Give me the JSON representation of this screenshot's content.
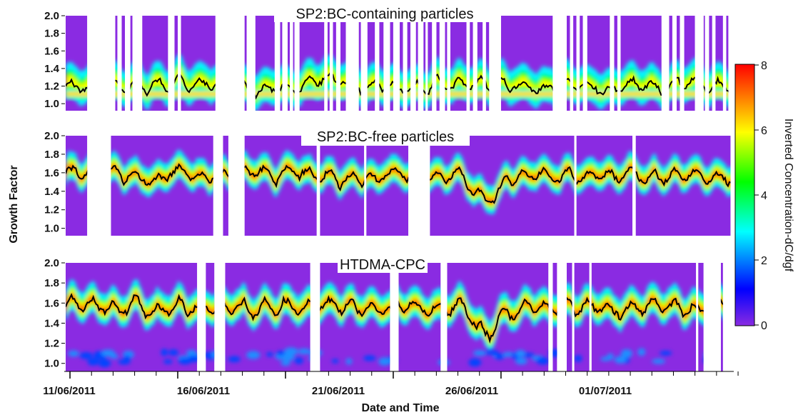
{
  "chart_data": {
    "type": "heatmap",
    "xlabel": "Date and Time",
    "ylabel": "Growth Factor",
    "x_ticks": [
      "11/06/2011",
      "16/06/2011",
      "21/06/2011",
      "26/06/2011",
      "01/07/2011"
    ],
    "ylim": [
      0.92,
      2.0
    ],
    "y_ticks": [
      "1.0",
      "1.2",
      "1.4",
      "1.6",
      "1.8",
      "2.0"
    ],
    "colorbar": {
      "label": "Inverted Concentration-dC/dgf",
      "range": [
        0,
        8
      ],
      "ticks": [
        "0",
        "2",
        "4",
        "6",
        "8"
      ],
      "colormap": [
        "#8a2be2",
        "#0000ff",
        "#00ffff",
        "#00ff00",
        "#ffff00",
        "#ff0000"
      ]
    },
    "panels": [
      {
        "title": "SP2:BC-containing particles",
        "data_segments_day": [
          [
            0,
            1
          ],
          [
            2.3,
            2.4
          ],
          [
            2.6,
            2.75
          ],
          [
            3.0,
            3.1
          ],
          [
            3.55,
            4.75
          ],
          [
            5.05,
            5.2
          ],
          [
            5.35,
            6.95
          ],
          [
            8.3,
            8.4
          ],
          [
            8.8,
            9.7
          ],
          [
            9.95,
            10.05
          ],
          [
            10.3,
            10.4
          ],
          [
            10.55,
            10.6
          ],
          [
            10.85,
            12.0
          ],
          [
            12.15,
            12.25
          ],
          [
            12.4,
            12.55
          ],
          [
            12.75,
            13.0
          ],
          [
            13.6,
            13.7
          ],
          [
            14.0,
            14.35
          ],
          [
            14.55,
            14.75
          ],
          [
            15.05,
            15.2
          ],
          [
            15.5,
            15.65
          ],
          [
            15.85,
            16.0
          ],
          [
            16.25,
            16.35
          ],
          [
            16.6,
            16.7
          ],
          [
            16.8,
            17.0
          ],
          [
            17.2,
            17.35
          ],
          [
            17.6,
            17.7
          ],
          [
            17.85,
            18.6
          ],
          [
            18.75,
            18.9
          ],
          [
            19.1,
            19.35
          ],
          [
            19.5,
            19.65
          ],
          [
            20.2,
            22.6
          ],
          [
            23.25,
            23.4
          ],
          [
            23.55,
            23.7
          ],
          [
            23.85,
            24.0
          ],
          [
            24.2,
            25.25
          ],
          [
            25.45,
            25.6
          ],
          [
            25.75,
            27.65
          ],
          [
            28.0,
            28.15
          ],
          [
            28.35,
            28.5
          ],
          [
            28.7,
            29.2
          ],
          [
            29.6,
            29.65
          ],
          [
            29.85,
            30.0
          ],
          [
            30.15,
            30.5
          ],
          [
            30.65,
            30.75
          ]
        ],
        "mean_gf_approx": 1.22,
        "mode_band_gf": [
          1.08,
          1.15
        ]
      },
      {
        "title": "SP2:BC-free particles",
        "data_segments_day": [
          [
            0,
            1
          ],
          [
            2.1,
            6.85
          ],
          [
            7.3,
            7.55
          ],
          [
            8.3,
            11.65
          ],
          [
            11.8,
            13.85
          ],
          [
            13.95,
            15.9
          ],
          [
            16.9,
            23.6
          ],
          [
            23.7,
            26.3
          ],
          [
            26.45,
            30.85
          ]
        ],
        "mean_gf_approx": 1.58
      },
      {
        "title": "HTDMA-CPC",
        "data_segments_day": [
          [
            0,
            6.1
          ],
          [
            6.5,
            6.9
          ],
          [
            7.4,
            11.35
          ],
          [
            11.8,
            15.05
          ],
          [
            15.45,
            17.4
          ],
          [
            17.7,
            22.4
          ],
          [
            22.6,
            22.8
          ],
          [
            23.25,
            23.5
          ],
          [
            23.6,
            24.3
          ],
          [
            24.4,
            29.25
          ],
          [
            29.35,
            29.6
          ],
          [
            30.4,
            30.5
          ]
        ],
        "mean_gf_approx": 1.55
      }
    ]
  }
}
